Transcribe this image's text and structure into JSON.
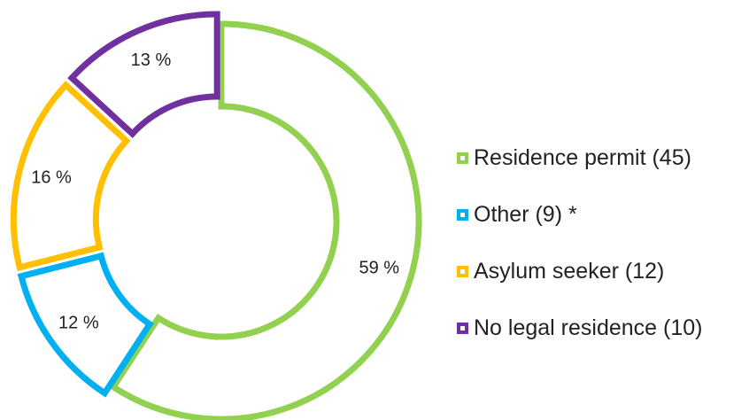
{
  "chart_data": {
    "type": "pie",
    "variant": "exploded-donut",
    "categories": [
      "Residence permit",
      "Other",
      "Asylum seeker",
      "No legal residence"
    ],
    "values": [
      45,
      9,
      12,
      10
    ],
    "percent_labels": [
      "59 %",
      "12 %",
      "16 %",
      "13 %"
    ],
    "legend": [
      {
        "label": "Residence permit (45)",
        "color": "#92d050"
      },
      {
        "label": "Other (9) *",
        "color": "#00b0f0"
      },
      {
        "label": "Asylum seeker (12)",
        "color": "#ffc000"
      },
      {
        "label": "No legal residence (10)",
        "color": "#7030a0"
      }
    ],
    "colors": [
      "#92d050",
      "#00b0f0",
      "#ffc000",
      "#7030a0"
    ],
    "fill": "#ffffff",
    "legend_position": "right"
  }
}
